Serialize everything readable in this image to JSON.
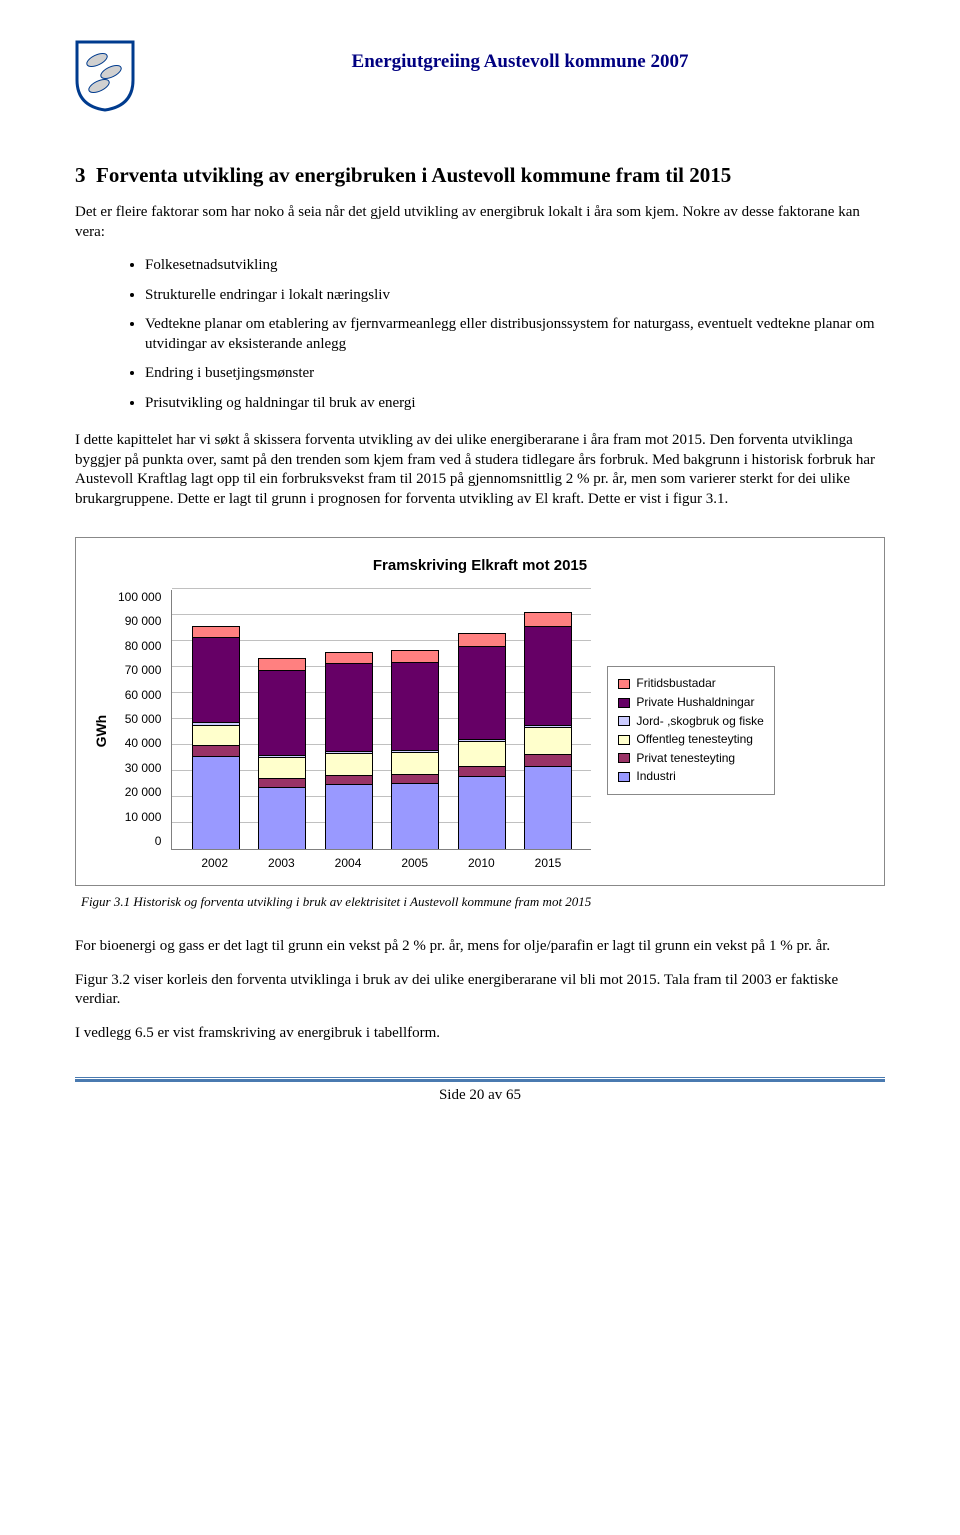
{
  "header": {
    "title": "Energiutgreiing Austevoll kommune 2007",
    "shield": {
      "stroke": "#003b8e",
      "fill": "#ffffff",
      "fish_fill": "#d9d9d9"
    }
  },
  "section": {
    "number": "3",
    "title": "Forventa utvikling av energibruken i Austevoll kommune fram til 2015",
    "intro": "Det er fleire faktorar som har noko å seia når det gjeld utvikling av energibruk lokalt i åra som kjem. Nokre av desse faktorane kan vera:",
    "bullets": [
      "Folkesetnadsutvikling",
      "Strukturelle endringar i lokalt næringsliv",
      "Vedtekne planar om etablering av fjernvarmeanlegg eller distribusjonssystem for naturgass, eventuelt vedtekne planar om utvidingar av eksisterande anlegg",
      "Endring i busetjingsmønster",
      "Prisutvikling og haldningar til bruk av energi"
    ],
    "body": "I dette kapittelet har vi søkt å skissera forventa utvikling av dei ulike energiberarane i åra fram mot 2015. Den forventa utviklinga byggjer på punkta over, samt på den trenden som kjem fram ved å studera tidlegare års forbruk. Med bakgrunn i historisk forbruk har Austevoll Kraftlag lagt opp til ein forbruksvekst fram til 2015 på gjennomsnittlig 2 % pr. år, men som varierer sterkt for dei ulike brukargruppene. Dette er lagt til grunn i prognosen for forventa utvikling av El kraft. Dette er vist i figur 3.1."
  },
  "chart": {
    "title": "Framskriving Elkraft mot 2015",
    "y_label": "GWh",
    "y_max": 100000,
    "y_step": 10000,
    "y_ticks": [
      "100 000",
      "90 000",
      "80 000",
      "70 000",
      "60 000",
      "50 000",
      "40 000",
      "30 000",
      "20 000",
      "10 000",
      "0"
    ],
    "categories": [
      "2002",
      "2003",
      "2004",
      "2005",
      "2010",
      "2015"
    ],
    "series_order": [
      "industri",
      "privat_tenesteyting",
      "offentleg_tenesteyting",
      "jord_skog_fiske",
      "private_hushaldningar",
      "fritidsbustadar"
    ],
    "colors": {
      "industri": "#9999ff",
      "privat_tenesteyting": "#993366",
      "offentleg_tenesteyting": "#ffffcc",
      "jord_skog_fiske": "#ccccff",
      "private_hushaldningar": "#660066",
      "fritidsbustadar": "#ff8080"
    },
    "values": {
      "2002": {
        "industri": 36000,
        "privat_tenesteyting": 4000,
        "offentleg_tenesteyting": 8000,
        "jord_skog_fiske": 800,
        "private_hushaldningar": 33000,
        "fritidsbustadar": 4000
      },
      "2003": {
        "industri": 24000,
        "privat_tenesteyting": 3500,
        "offentleg_tenesteyting": 8000,
        "jord_skog_fiske": 800,
        "private_hushaldningar": 33000,
        "fritidsbustadar": 4000
      },
      "2004": {
        "industri": 25000,
        "privat_tenesteyting": 3500,
        "offentleg_tenesteyting": 8500,
        "jord_skog_fiske": 800,
        "private_hushaldningar": 34000,
        "fritidsbustadar": 4000
      },
      "2005": {
        "industri": 25500,
        "privat_tenesteyting": 3500,
        "offentleg_tenesteyting": 8500,
        "jord_skog_fiske": 800,
        "private_hushaldningar": 34000,
        "fritidsbustadar": 4000
      },
      "2010": {
        "industri": 28000,
        "privat_tenesteyting": 4000,
        "offentleg_tenesteyting": 9500,
        "jord_skog_fiske": 900,
        "private_hushaldningar": 36000,
        "fritidsbustadar": 4500
      },
      "2015": {
        "industri": 32000,
        "privat_tenesteyting": 4500,
        "offentleg_tenesteyting": 10500,
        "jord_skog_fiske": 1000,
        "private_hushaldningar": 38000,
        "fritidsbustadar": 5000
      }
    },
    "legend": [
      {
        "key": "fritidsbustadar",
        "label": "Fritidsbustadar"
      },
      {
        "key": "private_hushaldningar",
        "label": "Private Hushaldningar"
      },
      {
        "key": "jord_skog_fiske",
        "label": "Jord- ,skogbruk og fiske"
      },
      {
        "key": "offentleg_tenesteyting",
        "label": "Offentleg  tenesteyting"
      },
      {
        "key": "privat_tenesteyting",
        "label": "Privat tenesteyting"
      },
      {
        "key": "industri",
        "label": "Industri"
      }
    ]
  },
  "figure_caption": "Figur 3.1 Historisk og forventa utvikling i bruk av elektrisitet i Austevoll kommune fram mot 2015",
  "after_chart": {
    "p1": "For bioenergi og gass er det lagt til grunn ein vekst på 2 % pr. år, mens for olje/parafin er lagt til grunn ein vekst på 1 % pr. år.",
    "p2": "Figur 3.2 viser korleis den forventa utviklinga i bruk av dei ulike energiberarane vil bli mot 2015. Tala fram til 2003 er faktiske verdiar.",
    "p3": "I vedlegg 6.5 er vist framskriving av energibruk i tabellform."
  },
  "footer": "Side 20 av 65"
}
